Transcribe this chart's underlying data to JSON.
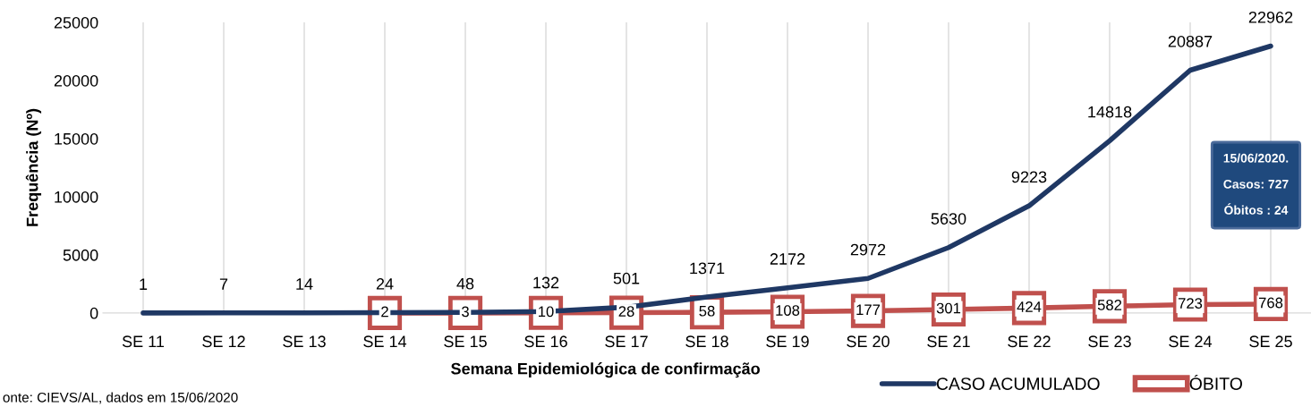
{
  "chart_data": {
    "type": "line",
    "xlabel": "Semana Epidemiológica de confirmação",
    "ylabel": "Frequência (Nº)",
    "categories": [
      "SE 11",
      "SE 12",
      "SE 13",
      "SE 14",
      "SE 15",
      "SE 16",
      "SE 17",
      "SE 18",
      "SE 19",
      "SE 20",
      "SE 21",
      "SE 22",
      "SE 23",
      "SE 24",
      "SE 25"
    ],
    "series": [
      {
        "name": "CASO ACUMULADO",
        "color": "#1f3864",
        "values": [
          1,
          7,
          14,
          24,
          48,
          132,
          501,
          1371,
          2172,
          2972,
          5630,
          9223,
          14818,
          20887,
          22962
        ]
      },
      {
        "name": "ÓBITO",
        "color": "#c0504d",
        "marker": "square",
        "values": [
          null,
          null,
          null,
          2,
          3,
          10,
          28,
          58,
          108,
          177,
          301,
          424,
          582,
          723,
          768
        ]
      }
    ],
    "ylim": [
      0,
      25000
    ],
    "yticks": [
      0,
      5000,
      10000,
      15000,
      20000,
      25000
    ],
    "grid": "x",
    "legend": "bottom right",
    "data_labels": true,
    "marker": "none",
    "line_style": "solid",
    "annotations": [
      "15/06/2020.\nCasos: 727\nÓbitos : 24",
      "onte: CIEVS/AL, dados em 15/06/2020"
    ]
  }
}
